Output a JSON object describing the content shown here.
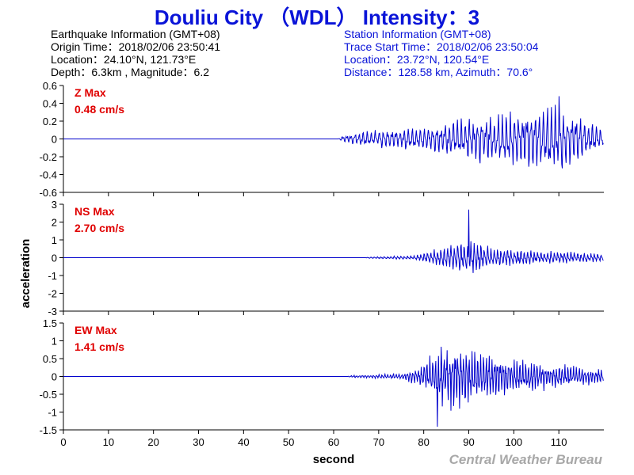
{
  "title": "Douliu City （WDL） Intensity：3",
  "earthquake_info": {
    "heading": "Earthquake Information  (GMT+08)",
    "origin_time": "Origin Time：2018/02/06 23:50:41",
    "location": "Location：24.10°N, 121.73°E",
    "depth_magnitude": "Depth：6.3km , Magnitude：6.2"
  },
  "station_info": {
    "heading": "Station Information  (GMT+08)",
    "trace_start": "Trace Start Time：2018/02/06 23:50:04",
    "location": "Location：23.72°N, 120.54°E",
    "distance_azimuth": "Distance：128.58 km, Azimuth：70.6°"
  },
  "credit": "Central Weather Bureau",
  "colors": {
    "title": "#0a14d8",
    "trace": "#0000cc",
    "max_label": "#e00000",
    "credit": "#a8a8a8"
  },
  "chart_data": {
    "type": "line",
    "xlabel": "second",
    "ylabel": "acceleration",
    "xlim": [
      0,
      120
    ],
    "xticks": [
      0,
      10,
      20,
      30,
      40,
      50,
      60,
      70,
      80,
      90,
      100,
      110
    ],
    "panels": [
      {
        "component": "Z",
        "max_title": "Z Max",
        "max_value": "0.48 cm/s",
        "ylim": [
          -0.6,
          0.6
        ],
        "yticks": [
          -0.6,
          -0.4,
          -0.2,
          0,
          0.2,
          0.4,
          0.6
        ],
        "ytick_labels": [
          "-0.6",
          "-0.4",
          "-0.2",
          "0",
          "0.2",
          "0.4",
          "0.6"
        ],
        "onset": 61,
        "peak": 0.48,
        "peak_time": 110,
        "envelope": [
          [
            0,
            0
          ],
          [
            61,
            0
          ],
          [
            62,
            0.04
          ],
          [
            66,
            0.1
          ],
          [
            72,
            0.13
          ],
          [
            80,
            0.17
          ],
          [
            85,
            0.23
          ],
          [
            90,
            0.28
          ],
          [
            95,
            0.33
          ],
          [
            100,
            0.38
          ],
          [
            104,
            0.42
          ],
          [
            108,
            0.45
          ],
          [
            110,
            0.46
          ],
          [
            113,
            0.38
          ],
          [
            116,
            0.25
          ],
          [
            118,
            0.18
          ],
          [
            120,
            0.14
          ]
        ]
      },
      {
        "component": "NS",
        "max_title": "NS Max",
        "max_value": "2.70 cm/s",
        "ylim": [
          -3,
          3
        ],
        "yticks": [
          -3,
          -2,
          -1,
          0,
          1,
          2,
          3
        ],
        "ytick_labels": [
          "-3",
          "-2",
          "-1",
          "0",
          "1",
          "2",
          "3"
        ],
        "onset": 67,
        "peak": 2.7,
        "peak_time": 90,
        "envelope": [
          [
            0,
            0
          ],
          [
            67,
            0
          ],
          [
            68,
            0.06
          ],
          [
            73,
            0.1
          ],
          [
            78,
            0.15
          ],
          [
            82,
            0.5
          ],
          [
            85,
            0.9
          ],
          [
            88,
            1.1
          ],
          [
            90,
            1.2
          ],
          [
            93,
            0.8
          ],
          [
            96,
            0.75
          ],
          [
            100,
            0.6
          ],
          [
            105,
            0.45
          ],
          [
            110,
            0.4
          ],
          [
            115,
            0.35
          ],
          [
            120,
            0.3
          ]
        ]
      },
      {
        "component": "EW",
        "max_title": "EW Max",
        "max_value": "1.41 cm/s",
        "ylim": [
          -1.5,
          1.5
        ],
        "yticks": [
          -1.5,
          -1,
          -0.5,
          0,
          0.5,
          1,
          1.5
        ],
        "ytick_labels": [
          "-1.5",
          "-1",
          "-0.5",
          "0",
          "0.5",
          "1",
          "1.5"
        ],
        "onset": 63,
        "peak": -1.41,
        "peak_time": 83,
        "envelope": [
          [
            0,
            0
          ],
          [
            63,
            0
          ],
          [
            64,
            0.04
          ],
          [
            70,
            0.06
          ],
          [
            75,
            0.1
          ],
          [
            79,
            0.3
          ],
          [
            82,
            0.8
          ],
          [
            84,
            1.05
          ],
          [
            87,
            1.1
          ],
          [
            90,
            0.95
          ],
          [
            93,
            0.85
          ],
          [
            96,
            0.7
          ],
          [
            100,
            0.6
          ],
          [
            105,
            0.5
          ],
          [
            110,
            0.4
          ],
          [
            115,
            0.3
          ],
          [
            120,
            0.25
          ]
        ]
      }
    ]
  }
}
